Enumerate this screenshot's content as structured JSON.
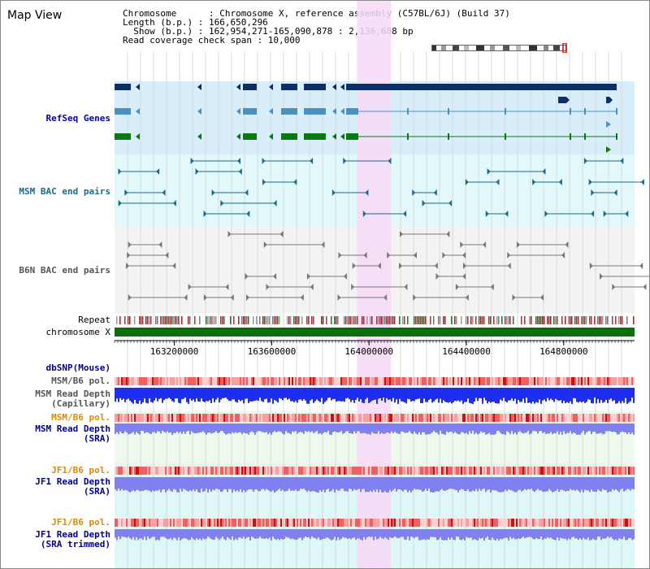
{
  "view": {
    "title": "Map View"
  },
  "info": {
    "chromosome": "Chromosome      : Chromosome X, reference assembly (C57BL/6J) (Build 37)",
    "length": "Length (b.p.) : 166,650,296",
    "show": "  Show (b.p.) : 162,954,271-165,090,878 : 2,136,608 bp",
    "coverage": "Read coverage check span : 10,000"
  },
  "tracks": {
    "refseq": "RefSeq Genes",
    "msm_bac": "MSM BAC end pairs",
    "b6n_bac": "B6N BAC end pairs",
    "repeat": "Repeat",
    "chrom": "chromosome X",
    "dbsnp": "dbSNP(Mouse)",
    "msm_pol1": "MSM/B6 pol.",
    "msm_depth_cap": "MSM Read Depth\n(Capillary)",
    "msm_pol2": "MSM/B6 pol.",
    "msm_depth_sra": "MSM Read Depth\n(SRA)",
    "jf1_pol1": "JF1/B6 pol.",
    "jf1_depth_sra": "JF1 Read Depth\n(SRA)",
    "jf1_pol2": "JF1/B6 pol.",
    "jf1_depth_trim": "JF1 Read Depth\n(SRA trimmed)"
  },
  "axis": {
    "ticks": [
      "163200000",
      "163600000",
      "164000000",
      "164400000",
      "164800000"
    ],
    "tick_values": [
      163200000,
      163600000,
      164000000,
      164400000,
      164800000
    ],
    "view_start": 162954271,
    "view_end": 165090878,
    "highlight": [
      163950000,
      164090000
    ]
  },
  "colors": {
    "refseq_bg": "#d8eefa",
    "msm_bg": "#e2f8fa",
    "b6n_bg": "#f3f3f3",
    "highlight": "#f7d9f7",
    "gene1": "#0c2f6a",
    "gene2": "#4a90c0",
    "gene3": "#0a7a10",
    "msm_pair": "#1a6a8a",
    "b6n_pair": "#777777",
    "chrom": "#087008",
    "dbsnp_label": "#00008b",
    "msm_label": "#00008b",
    "jf1_label": "#e08a00",
    "depth_cap": "#1e2ef0",
    "depth_sra": "#8080f0"
  }
}
